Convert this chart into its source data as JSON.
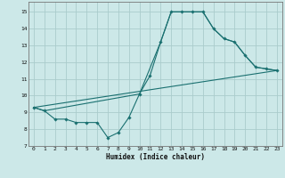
{
  "title": "",
  "xlabel": "Humidex (Indice chaleur)",
  "bg_color": "#cce8e8",
  "grid_color": "#aacccc",
  "line_color": "#1a7070",
  "xlim": [
    -0.5,
    23.5
  ],
  "ylim": [
    7,
    15.6
  ],
  "yticks": [
    7,
    8,
    9,
    10,
    11,
    12,
    13,
    14,
    15
  ],
  "xticks": [
    0,
    1,
    2,
    3,
    4,
    5,
    6,
    7,
    8,
    9,
    10,
    11,
    12,
    13,
    14,
    15,
    16,
    17,
    18,
    19,
    20,
    21,
    22,
    23
  ],
  "line1_x": [
    0,
    1,
    2,
    3,
    4,
    5,
    6,
    7,
    8,
    9,
    10,
    11,
    12,
    13,
    14,
    15,
    16,
    17,
    18,
    19,
    20,
    21,
    22,
    23
  ],
  "line1_y": [
    9.3,
    9.1,
    8.6,
    8.6,
    8.4,
    8.4,
    8.4,
    7.5,
    7.8,
    8.7,
    10.1,
    11.2,
    13.2,
    15.0,
    15.0,
    15.0,
    15.0,
    14.0,
    13.4,
    13.2,
    12.4,
    11.7,
    11.6,
    11.5
  ],
  "line2_x": [
    0,
    1,
    10,
    12,
    13,
    14,
    15,
    16,
    17,
    18,
    19,
    20,
    21,
    22,
    23
  ],
  "line2_y": [
    9.3,
    9.1,
    10.1,
    13.2,
    15.0,
    15.0,
    15.0,
    15.0,
    14.0,
    13.4,
    13.2,
    12.4,
    11.7,
    11.6,
    11.5
  ],
  "line3_x": [
    0,
    23
  ],
  "line3_y": [
    9.3,
    11.5
  ]
}
